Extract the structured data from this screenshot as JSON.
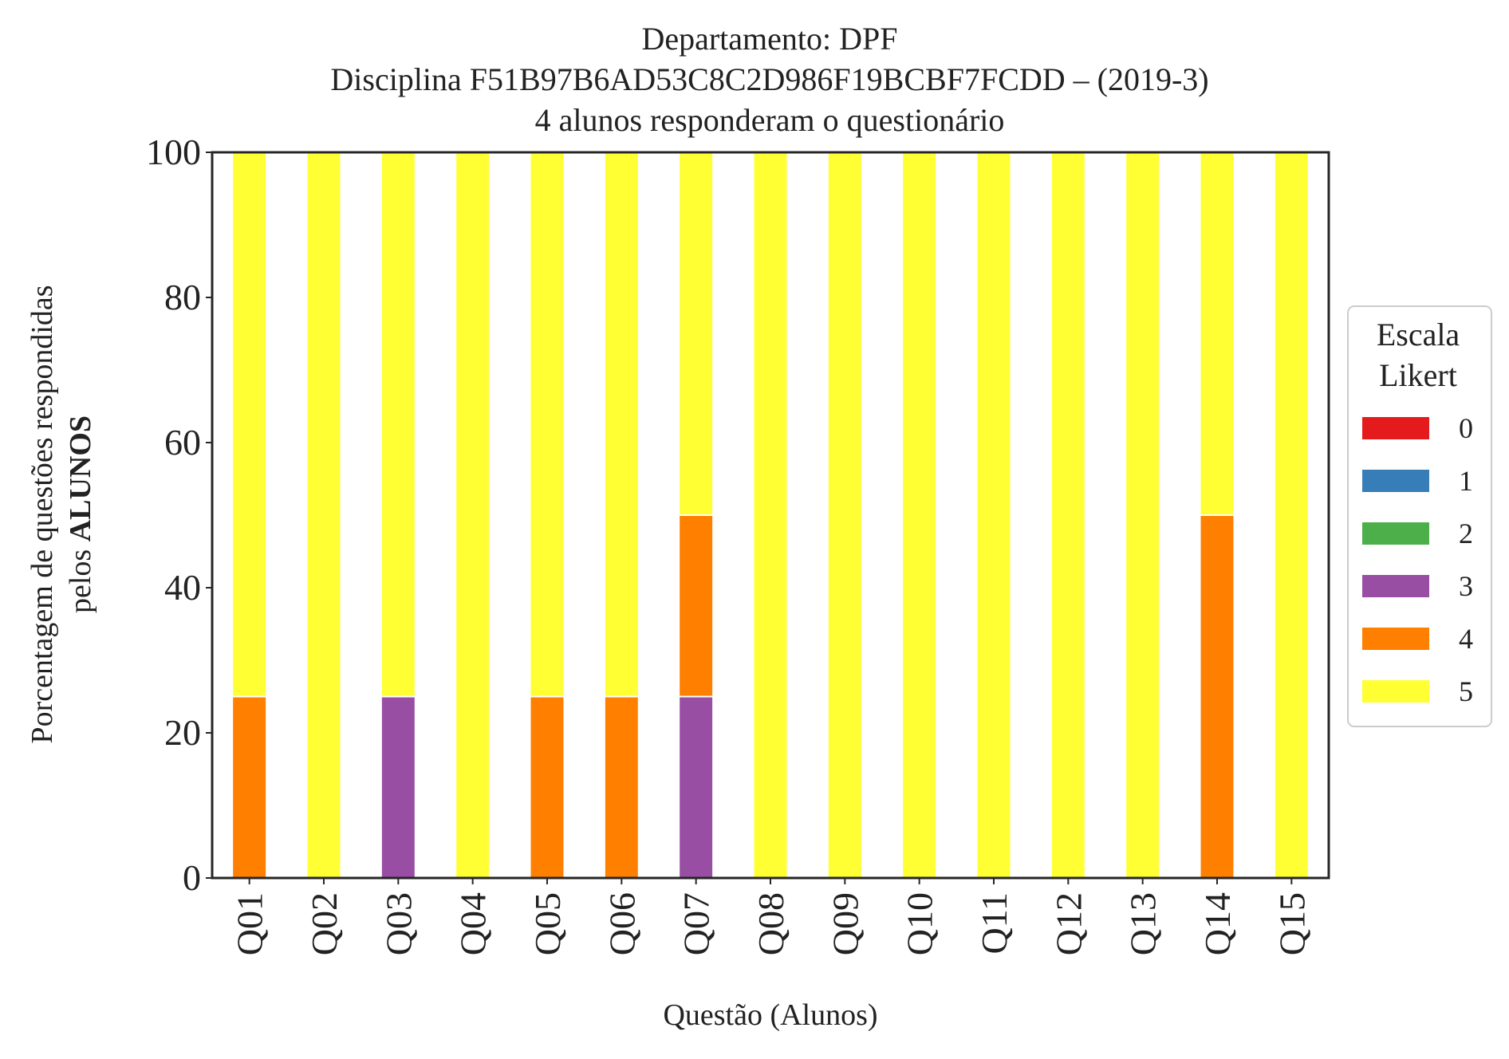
{
  "chart_data": {
    "type": "bar",
    "stacked": true,
    "title_lines": [
      "Departamento: DPF",
      "Disciplina F51B97B6AD53C8C2D986F19BCBF7FCDD – (2019-3)",
      "4 alunos responderam o questionário"
    ],
    "xlabel": "Questão (Alunos)",
    "ylabel_line1": "Porcentagem de questões respondidas",
    "ylabel_line2_prefix": "pelos ",
    "ylabel_line2_bold": "ALUNOS",
    "ylim": [
      0,
      100
    ],
    "yticks": [
      "0",
      "20",
      "40",
      "60",
      "80",
      "100"
    ],
    "categories": [
      "Q01",
      "Q02",
      "Q03",
      "Q04",
      "Q05",
      "Q06",
      "Q07",
      "Q08",
      "Q09",
      "Q10",
      "Q11",
      "Q12",
      "Q13",
      "Q14",
      "Q15"
    ],
    "series": [
      {
        "name": "0",
        "color": "#e41a1c",
        "values": [
          0,
          0,
          0,
          0,
          0,
          0,
          0,
          0,
          0,
          0,
          0,
          0,
          0,
          0,
          0
        ]
      },
      {
        "name": "1",
        "color": "#377eb8",
        "values": [
          0,
          0,
          0,
          0,
          0,
          0,
          0,
          0,
          0,
          0,
          0,
          0,
          0,
          0,
          0
        ]
      },
      {
        "name": "2",
        "color": "#4daf4a",
        "values": [
          0,
          0,
          0,
          0,
          0,
          0,
          0,
          0,
          0,
          0,
          0,
          0,
          0,
          0,
          0
        ]
      },
      {
        "name": "3",
        "color": "#984ea3",
        "values": [
          0,
          0,
          25,
          0,
          0,
          0,
          25,
          0,
          0,
          0,
          0,
          0,
          0,
          0,
          0
        ]
      },
      {
        "name": "4",
        "color": "#ff7f00",
        "values": [
          25,
          0,
          0,
          0,
          25,
          25,
          25,
          0,
          0,
          0,
          0,
          0,
          0,
          50,
          0
        ]
      },
      {
        "name": "5",
        "color": "#ffff33",
        "values": [
          75,
          100,
          75,
          100,
          75,
          75,
          50,
          100,
          100,
          100,
          100,
          100,
          100,
          50,
          100
        ]
      }
    ],
    "legend": {
      "title_lines": [
        "Escala",
        "Likert"
      ],
      "placement": "right"
    },
    "grid": false
  }
}
